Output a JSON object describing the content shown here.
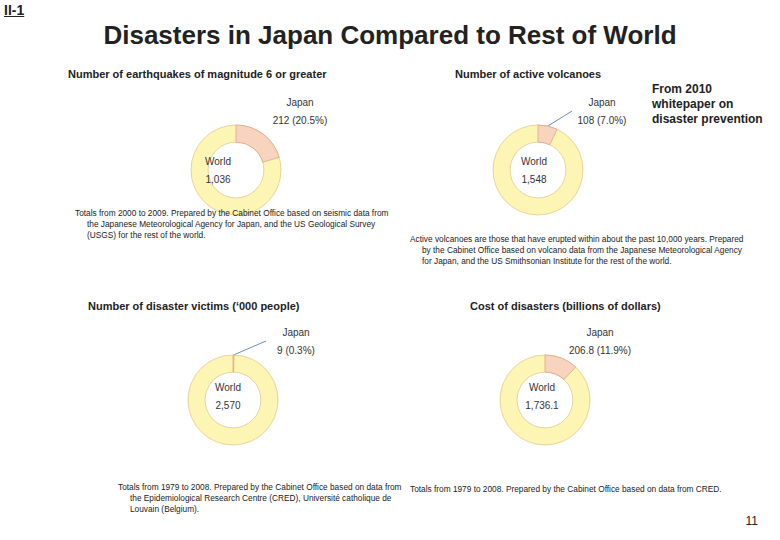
{
  "header": "II-1",
  "title": "Disasters in Japan Compared to Rest of World",
  "source": "From 2010 whitepaper on disaster prevention",
  "page_number": 11,
  "chart_data": [
    {
      "type": "pie",
      "title": "Number of earthquakes of magnitude 6 or greater",
      "categories": [
        "Japan",
        "World"
      ],
      "values": [
        212,
        1036
      ],
      "value_labels": [
        "212 (20.5%)",
        "1,036"
      ],
      "colors": [
        "#f8d3be",
        "#fdf5b4"
      ],
      "data_labels": true,
      "note": "Totals from 2000 to 2009. Prepared by the Cabinet Office based on seismic data from the Japanese Meteorological Agency for Japan, and the US Geological Survey (USGS) for the rest of the world."
    },
    {
      "type": "pie",
      "title": "Number of active volcanoes",
      "categories": [
        "Japan",
        "World"
      ],
      "values": [
        108,
        1548
      ],
      "value_labels": [
        "108 (7.0%)",
        "1,548"
      ],
      "colors": [
        "#f8d3be",
        "#fdf5b4"
      ],
      "data_labels": true,
      "note": "Active volcanoes are those that have erupted within about the past 10,000 years. Prepared by the Cabinet Office based on volcano data from the Japanese Meteorological Agency for Japan, and the US Smithsonian Institute for the rest of the world."
    },
    {
      "type": "pie",
      "title": "Number of disaster victims (‘000 people)",
      "categories": [
        "Japan",
        "World"
      ],
      "values": [
        9,
        2570
      ],
      "value_labels": [
        "9 (0.3%)",
        "2,570"
      ],
      "colors": [
        "#f8d3be",
        "#fdf5b4"
      ],
      "data_labels": true,
      "note": "Totals from 1979 to 2008. Prepared by the Cabinet Office based on data from the Epidemiological Research Centre (CRED), Université catholique de Louvain (Belgium)."
    },
    {
      "type": "pie",
      "title": "Cost of disasters (billions of dollars)",
      "categories": [
        "Japan",
        "World"
      ],
      "values": [
        206.8,
        1736.1
      ],
      "value_labels": [
        "206.8 (11.9%)",
        "1,736.1"
      ],
      "colors": [
        "#f8d3be",
        "#fdf5b4"
      ],
      "data_labels": true,
      "note": "Totals from 1979 to 2008. Prepared by the Cabinet Office based on data from CRED."
    }
  ]
}
